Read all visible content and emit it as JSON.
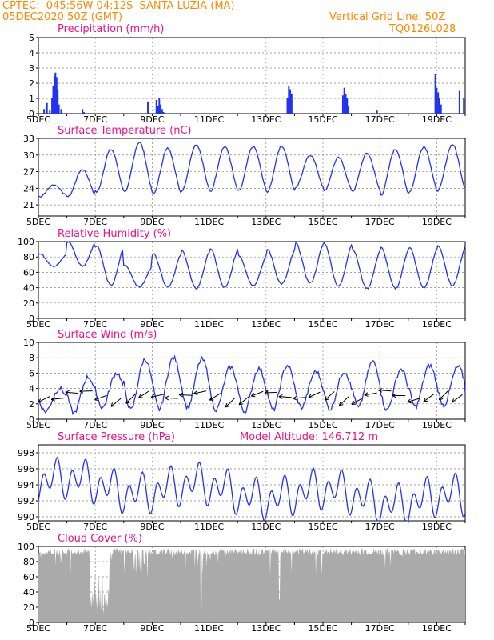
{
  "header": {
    "line1_left": "CPTEC:  045:56W-04:12S  SANTA LUZIA (MA)",
    "line1_right": "Vertical Grid Line: 50Z",
    "line2_left": "05DEC2020 50Z (GMT)",
    "line2_right": "TQ0126L028"
  },
  "colors": {
    "header": "#ff8800",
    "panel_title": "#ee1188",
    "series": "#2233ee",
    "bars": "#2233ee",
    "cloud": "#aaaaaa",
    "grid": "#888888"
  },
  "x_axis": {
    "tick_labels": [
      "5DEC",
      "7DEC",
      "9DEC",
      "11DEC",
      "13DEC",
      "15DEC",
      "17DEC",
      "19DEC"
    ],
    "tick_days": [
      5,
      7,
      9,
      11,
      13,
      15,
      17,
      19
    ],
    "range_days": [
      5,
      20
    ]
  },
  "chart_data": [
    {
      "type": "bar",
      "title": "Precipitation (mm/h)",
      "ylim": [
        0,
        5
      ],
      "yticks": [
        0,
        1,
        2,
        3,
        4,
        5
      ],
      "x": [
        5.2,
        5.3,
        5.4,
        5.48,
        5.52,
        5.56,
        5.6,
        5.64,
        5.68,
        5.72,
        5.8,
        6.55,
        6.6,
        8.85,
        9.15,
        9.2,
        9.25,
        9.3,
        9.35,
        9.4,
        13.75,
        13.8,
        13.85,
        13.9,
        15.7,
        15.75,
        15.8,
        15.85,
        15.9,
        16.9,
        18.95,
        19.0,
        19.05,
        19.1,
        19.15,
        19.8,
        19.95
      ],
      "values": [
        0.3,
        0.7,
        0.2,
        1.0,
        1.8,
        2.5,
        2.7,
        2.4,
        1.6,
        0.6,
        0.3,
        0.3,
        0.1,
        0.8,
        0.9,
        0.5,
        1.0,
        0.6,
        0.3,
        0.1,
        1.0,
        1.8,
        1.6,
        1.3,
        1.2,
        1.7,
        1.3,
        1.0,
        0.5,
        0.2,
        2.6,
        1.7,
        1.4,
        1.0,
        0.6,
        1.5,
        1.0
      ]
    },
    {
      "type": "line",
      "title": "Surface Temperature (nC)",
      "ylim": [
        19,
        33
      ],
      "yticks": [
        21,
        24,
        27,
        30,
        33
      ],
      "diurnal": {
        "min_day": [
          22.5,
          22.5,
          23.3,
          23.3,
          23.0,
          23.6,
          23.4,
          23.5,
          23.3,
          24.2,
          23.5,
          23.5,
          22.8,
          23.4,
          23.6,
          24.0,
          23.0
        ],
        "max_day": [
          24.6,
          27.4,
          31.0,
          32.3,
          31.2,
          31.9,
          31.5,
          31.5,
          31.6,
          30.0,
          29.5,
          30.3,
          31.0,
          31.5,
          31.9,
          32.0,
          32.0
        ]
      }
    },
    {
      "type": "line",
      "title": "Relative Humidity (%)",
      "ylim": [
        0,
        100
      ],
      "yticks": [
        0,
        20,
        40,
        60,
        80,
        100
      ],
      "diurnal": {
        "min_day": [
          68,
          68,
          43,
          41,
          41,
          39,
          40,
          43,
          45,
          46,
          42,
          39,
          39,
          40,
          43,
          44,
          42
        ],
        "max_day": [
          84,
          100,
          95,
          69,
          84,
          88,
          91,
          82,
          90,
          98,
          98,
          90,
          92,
          92,
          95,
          96,
          90
        ]
      }
    },
    {
      "type": "line",
      "title": "Surface Wind (m/s)",
      "ylim": [
        0,
        10
      ],
      "yticks": [
        0,
        2,
        4,
        6,
        8,
        10
      ],
      "diurnal": {
        "min_day": [
          1.0,
          0.8,
          1.5,
          1.2,
          1.3,
          1.5,
          1.2,
          1.0,
          1.2,
          1.5,
          1.3,
          1.5,
          1.2,
          1.6,
          1.8,
          1.5,
          2.0
        ],
        "max_day": [
          4.0,
          5.5,
          6.0,
          7.8,
          8.0,
          7.8,
          6.8,
          6.6,
          7.0,
          6.2,
          6.2,
          7.5,
          6.5,
          7.0,
          6.8,
          5.3,
          5.5
        ]
      },
      "arrows_every_hours": 12
    },
    {
      "type": "line",
      "title": "Surface Pressure (hPa)",
      "annotation": "Model Altitude: 146.712 m",
      "ylim": [
        989.5,
        999
      ],
      "yticks": [
        990,
        992,
        994,
        996,
        998
      ]
    },
    {
      "type": "area",
      "title": "Cloud Cover (%)",
      "ylim": [
        0,
        100
      ],
      "yticks": [
        0,
        20,
        40,
        60,
        80,
        100
      ]
    }
  ]
}
